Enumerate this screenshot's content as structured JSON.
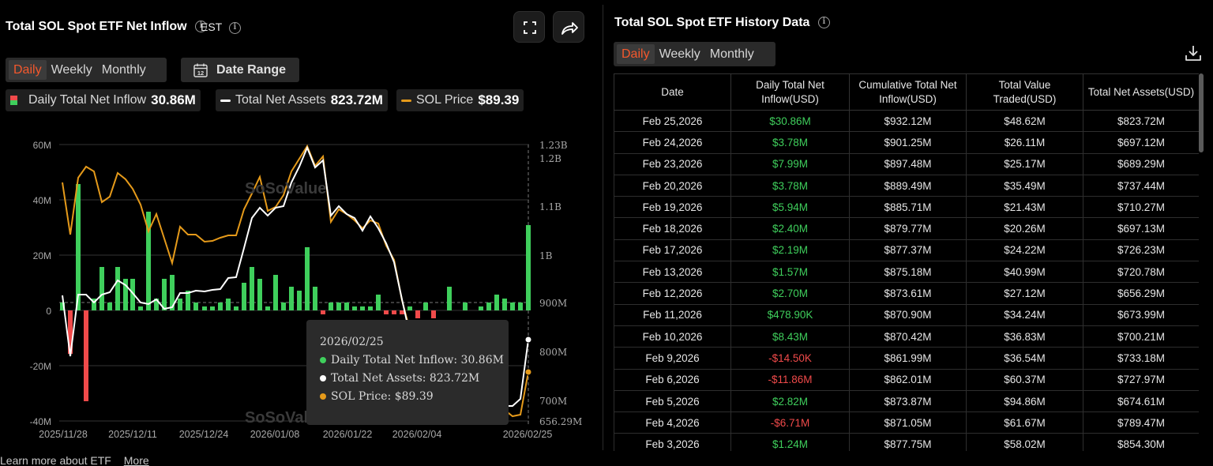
{
  "left_panel": {
    "title": "Total SOL Spot ETF Net Inflow",
    "timezone": "EST",
    "tabs": [
      "Daily",
      "Weekly",
      "Monthly"
    ],
    "active_tab": "Daily",
    "date_range_label": "Date Range",
    "calendar_day": "12",
    "legend": [
      {
        "label": "Daily Total Net Inflow",
        "value": "30.86M",
        "color": "#3fcf5c"
      },
      {
        "label": "Total Net Assets",
        "value": "823.72M",
        "color": "#ffffff"
      },
      {
        "label": "SOL Price",
        "value": "$89.39",
        "color": "#e59a1a"
      }
    ]
  },
  "chart_data": {
    "type": "bar",
    "x_labels": [
      "2025/11/28",
      "2025/12/11",
      "2025/12/24",
      "2026/01/08",
      "2026/01/22",
      "2026/02/04",
      "2026/02/25"
    ],
    "left_axis": [
      "60M",
      "40M",
      "20M",
      "0",
      "-20M",
      "-40M"
    ],
    "right_axis": [
      "1.23B",
      "1.2B",
      "1.1B",
      "1B",
      "900M",
      "800M",
      "700M",
      "656.29M"
    ],
    "series": [
      {
        "name": "Daily Total Net Inflow",
        "color_pos": "#3fcf5c",
        "color_neg": "#f04a4a"
      },
      {
        "name": "Total Net Assets",
        "color": "#ffffff"
      },
      {
        "name": "SOL Price",
        "color": "#e59a1a"
      }
    ],
    "watermark": "SoSoValue"
  },
  "tooltip": {
    "date": "2026/02/25",
    "items": [
      {
        "text": "Daily Total Net Inflow: 30.86M",
        "color": "#3fcf5c"
      },
      {
        "text": "Total Net Assets: 823.72M",
        "color": "#ffffff"
      },
      {
        "text": "SOL Price: $89.39",
        "color": "#e59a1a"
      }
    ]
  },
  "footer": {
    "learn_more": "Learn more about ETF",
    "more": "More"
  },
  "right_panel": {
    "title": "Total SOL Spot ETF History Data",
    "tabs": [
      "Daily",
      "Weekly",
      "Monthly"
    ],
    "active_tab": "Daily",
    "columns": [
      "Date",
      "Daily Total Net Inflow(USD)",
      "Cumulative Total Net Inflow(USD)",
      "Total Value Traded(USD)",
      "Total Net Assets(USD)"
    ],
    "rows": [
      [
        "Feb 25,2026",
        "$30.86M",
        "$932.12M",
        "$48.62M",
        "$823.72M"
      ],
      [
        "Feb 24,2026",
        "$3.78M",
        "$901.25M",
        "$26.11M",
        "$697.12M"
      ],
      [
        "Feb 23,2026",
        "$7.99M",
        "$897.48M",
        "$25.17M",
        "$689.29M"
      ],
      [
        "Feb 20,2026",
        "$3.78M",
        "$889.49M",
        "$35.49M",
        "$737.44M"
      ],
      [
        "Feb 19,2026",
        "$5.94M",
        "$885.71M",
        "$21.43M",
        "$710.27M"
      ],
      [
        "Feb 18,2026",
        "$2.40M",
        "$879.77M",
        "$20.26M",
        "$697.13M"
      ],
      [
        "Feb 17,2026",
        "$2.19M",
        "$877.37M",
        "$24.22M",
        "$726.23M"
      ],
      [
        "Feb 13,2026",
        "$1.57M",
        "$875.18M",
        "$40.99M",
        "$720.78M"
      ],
      [
        "Feb 12,2026",
        "$2.70M",
        "$873.61M",
        "$27.12M",
        "$656.29M"
      ],
      [
        "Feb 11,2026",
        "$478.90K",
        "$870.90M",
        "$34.24M",
        "$673.99M"
      ],
      [
        "Feb 10,2026",
        "$8.43M",
        "$870.42M",
        "$36.83M",
        "$700.21M"
      ],
      [
        "Feb 9,2026",
        "-$14.50K",
        "$861.99M",
        "$36.54M",
        "$733.18M"
      ],
      [
        "Feb 6,2026",
        "-$11.86M",
        "$862.01M",
        "$60.37M",
        "$727.97M"
      ],
      [
        "Feb 5,2026",
        "$2.82M",
        "$873.87M",
        "$94.86M",
        "$674.61M"
      ],
      [
        "Feb 4,2026",
        "-$6.71M",
        "$871.05M",
        "$61.67M",
        "$789.47M"
      ],
      [
        "Feb 3,2026",
        "$1.24M",
        "$877.75M",
        "$58.02M",
        "$854.30M"
      ]
    ]
  }
}
